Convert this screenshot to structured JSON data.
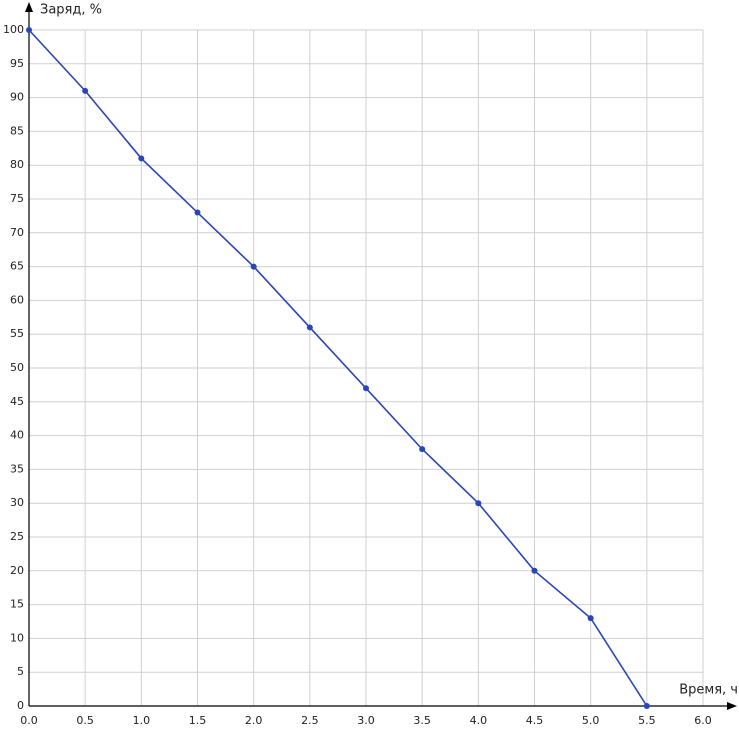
{
  "chart_data": {
    "type": "line",
    "x_label": "Время, ч",
    "y_label": "Заряд, %",
    "x": [
      0,
      0.5,
      1,
      1.5,
      2,
      2.5,
      3,
      3.5,
      4,
      4.5,
      5,
      5.5
    ],
    "series": [
      {
        "name": null,
        "color": "#2a45b8",
        "values": [
          100,
          91,
          81,
          73,
          65,
          56,
          47,
          38,
          30,
          20,
          13,
          0
        ]
      }
    ],
    "xlim": [
      0,
      6
    ],
    "xticks": [
      {
        "value": 0,
        "label": "0.0"
      },
      0.5,
      {
        "value": 1,
        "label": "1.0"
      },
      1.5,
      {
        "value": 2,
        "label": "2.0"
      },
      2.5,
      {
        "value": 3,
        "label": "3.0"
      },
      3.5,
      {
        "value": 4,
        "label": "4.0"
      },
      4.5,
      {
        "value": 5,
        "label": "5.0"
      },
      5.5,
      {
        "value": 6,
        "label": "6.0"
      }
    ],
    "ylim": [
      0,
      100
    ],
    "yticks": [
      0,
      5,
      10,
      15,
      20,
      25,
      30,
      35,
      40,
      45,
      50,
      55,
      60,
      65,
      70,
      75,
      80,
      85,
      90,
      95,
      100
    ],
    "grid": true
  }
}
